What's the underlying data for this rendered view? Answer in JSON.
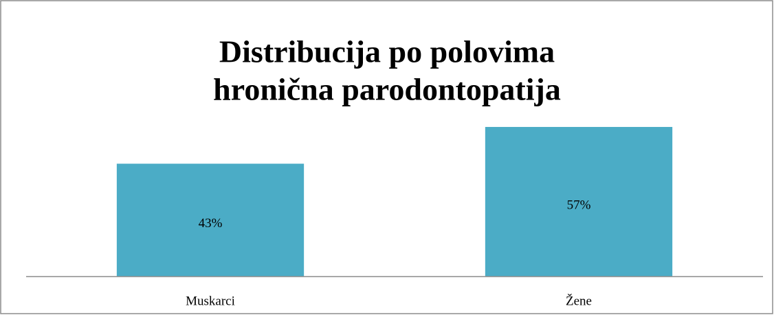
{
  "chart_data": {
    "type": "bar",
    "title": [
      "Distribucija po polovima",
      "hronična parodontopatija"
    ],
    "categories": [
      "Muskarci",
      "Žene"
    ],
    "values": [
      43,
      57
    ],
    "value_labels": [
      "43%",
      "57%"
    ],
    "color": "#4bacc6"
  }
}
